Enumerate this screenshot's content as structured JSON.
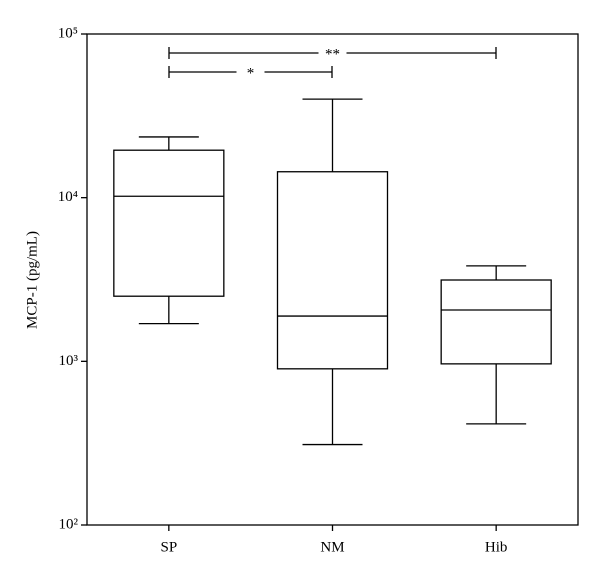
{
  "chart_data": {
    "type": "box",
    "y_label": "MCP-1 (pg/mL)",
    "categories": [
      "SP",
      "NM",
      "Hib"
    ],
    "whisker_low": [
      1700,
      310,
      415
    ],
    "q1": [
      2500,
      900,
      965
    ],
    "median": [
      10200,
      1890,
      2060
    ],
    "q3": [
      19500,
      14400,
      3140
    ],
    "whisker_high": [
      23500,
      40000,
      3830
    ],
    "log_y": true,
    "ylim": [
      100,
      100000
    ],
    "yticks": [
      {
        "value": 100,
        "label": "10²"
      },
      {
        "value": 1000,
        "label": "10³"
      },
      {
        "value": 10000,
        "label": "10⁴"
      },
      {
        "value": 100000,
        "label": "10⁵"
      }
    ],
    "annotations": [
      {
        "text": "**"
      },
      {
        "text": "*"
      }
    ],
    "color": "#000000"
  }
}
